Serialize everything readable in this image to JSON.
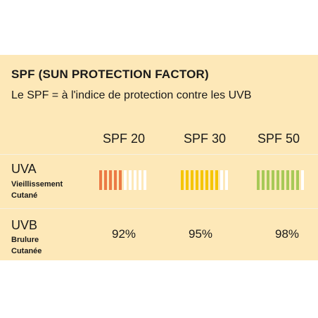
{
  "title": "SPF (SUN PROTECTION FACTOR)",
  "subtitle": "Le SPF = à l'indice de protection contre les UVB",
  "columns": [
    "SPF 20",
    "SPF 30",
    "SPF 50"
  ],
  "rows": {
    "uva": {
      "label": "UVA",
      "sublabel": "Vieillissement\nCutané"
    },
    "uvb": {
      "label": "UVB",
      "sublabel": "Brulure\nCutanée"
    }
  },
  "colors": {
    "background": "#fde8b8",
    "spf20_bar": "#ec7a45",
    "spf30_bar": "#f5c500",
    "spf50_bar": "#a7c957",
    "empty_bar": "#ffffff"
  },
  "chart_data": {
    "type": "table",
    "columns": [
      "SPF 20",
      "SPF 30",
      "SPF 50"
    ],
    "uva_bars": [
      {
        "column": "SPF 20",
        "filled": 5,
        "total": 10,
        "color": "#ec7a45"
      },
      {
        "column": "SPF 30",
        "filled": 8,
        "total": 10,
        "color": "#f5c500"
      },
      {
        "column": "SPF 50",
        "filled": 9,
        "total": 10,
        "color": "#a7c957"
      }
    ],
    "uvb_values": [
      "92%",
      "95%",
      "98%"
    ]
  }
}
